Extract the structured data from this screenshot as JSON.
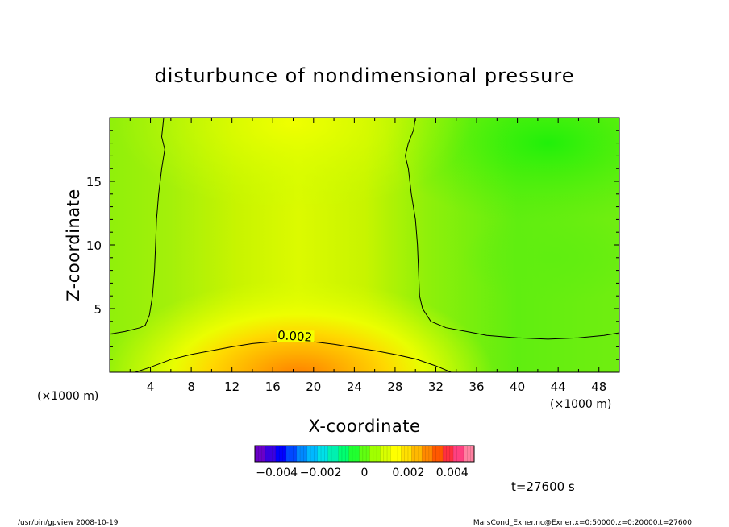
{
  "chart_data": {
    "type": "heatmap",
    "title": "disturbunce of nondimensional pressure",
    "xlabel": "X-coordinate",
    "ylabel": "Z-coordinate",
    "x_unit_left": "(×1000 m)",
    "x_unit_right": "(×1000 m)",
    "xlim": [
      0,
      50
    ],
    "ylim": [
      0,
      20
    ],
    "x_ticks": [
      4,
      8,
      12,
      16,
      20,
      24,
      28,
      32,
      36,
      40,
      44,
      48
    ],
    "y_ticks": [
      5,
      10,
      15
    ],
    "contours": [
      {
        "level": 0.002,
        "label": "0.002",
        "points": [
          [
            2.5,
            0
          ],
          [
            4,
            0.4
          ],
          [
            6,
            1
          ],
          [
            8,
            1.4
          ],
          [
            10,
            1.7
          ],
          [
            12,
            2.0
          ],
          [
            14,
            2.25
          ],
          [
            16,
            2.4
          ],
          [
            18,
            2.45
          ],
          [
            20,
            2.4
          ],
          [
            22,
            2.2
          ],
          [
            24,
            1.95
          ],
          [
            26,
            1.7
          ],
          [
            28,
            1.4
          ],
          [
            30,
            1.05
          ],
          [
            32,
            0.5
          ],
          [
            33.5,
            0
          ]
        ]
      },
      {
        "level": 0,
        "label": "",
        "points": [
          [
            0,
            3.0
          ],
          [
            1.5,
            3.2
          ],
          [
            3,
            3.5
          ],
          [
            3.5,
            3.7
          ],
          [
            3.9,
            4.5
          ],
          [
            4.2,
            6
          ],
          [
            4.4,
            8
          ],
          [
            4.5,
            10
          ],
          [
            4.6,
            12
          ],
          [
            4.8,
            14
          ],
          [
            5.1,
            16
          ],
          [
            5.3,
            17
          ],
          [
            5.4,
            17.5
          ],
          [
            5.1,
            18.5
          ],
          [
            5.3,
            20
          ]
        ]
      },
      {
        "level": 0,
        "label": "",
        "points": [
          [
            30,
            20
          ],
          [
            29.8,
            19
          ],
          [
            29.3,
            18
          ],
          [
            29,
            17
          ],
          [
            29.3,
            16
          ],
          [
            29.6,
            14
          ],
          [
            30,
            12
          ],
          [
            30.2,
            10
          ],
          [
            30.3,
            8
          ],
          [
            30.4,
            6
          ],
          [
            30.7,
            5
          ],
          [
            31.5,
            4
          ],
          [
            33,
            3.5
          ],
          [
            35,
            3.2
          ],
          [
            37,
            2.9
          ],
          [
            40,
            2.7
          ],
          [
            43,
            2.6
          ],
          [
            46,
            2.7
          ],
          [
            48.5,
            2.9
          ],
          [
            50,
            3.1
          ]
        ]
      }
    ],
    "colorbar": {
      "tick_labels": [
        "−0.004",
        "−0.002",
        "0",
        "0.002",
        "0.004"
      ],
      "range": [
        -0.005,
        0.005
      ],
      "colors": [
        "#6a00c8",
        "#3a00e0",
        "#0000ff",
        "#0048ff",
        "#0088ff",
        "#00b8ff",
        "#00e0e8",
        "#00f0b0",
        "#00ff70",
        "#20ff30",
        "#60ff10",
        "#a0ff00",
        "#d8ff00",
        "#ffff00",
        "#ffe000",
        "#ffb800",
        "#ff8800",
        "#ff5800",
        "#ff3040",
        "#ff4080",
        "#ff80a0"
      ]
    },
    "time_label": "t=27600 s"
  },
  "footer": {
    "left": "/usr/bin/gpview   2008-10-19",
    "right": "MarsCond_Exner.nc@Exner,x=0:50000,z=0:20000,t=27600"
  },
  "colors": {
    "field_center": "#e6ff00",
    "field_edge": "#8cf00a",
    "field_low": "#26f00a",
    "field_bottom": "#ff7a00"
  }
}
